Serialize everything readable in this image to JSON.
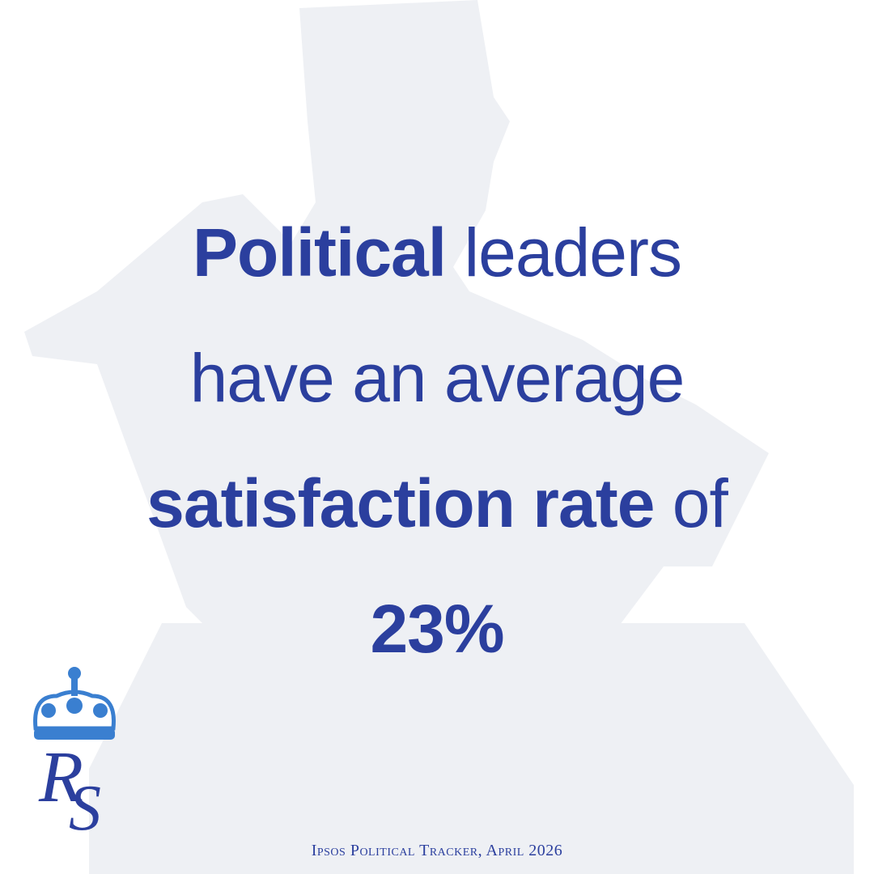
{
  "headline": {
    "line_1_bold": "Political",
    "line_1_light": "leaders",
    "line_2_light": "have an average",
    "line_3_bold": "satisfaction rate",
    "line_3_light": "of",
    "line_4_bold": "23%"
  },
  "logo": {
    "initial_1": "R",
    "initial_2": "S"
  },
  "source": "Ipsos Political Tracker, April 2026"
}
